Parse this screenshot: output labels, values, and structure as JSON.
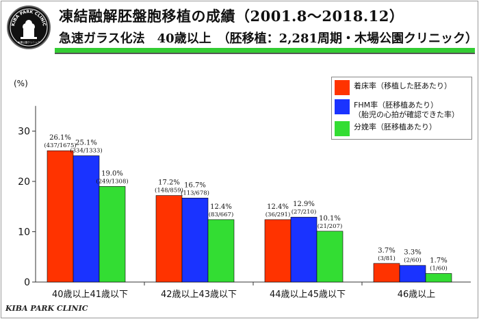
{
  "header": {
    "logo_text": "KIBA PARK CLINIC",
    "logo_subtext": "木場公園クリニック",
    "title_line1": "凍結融解胚盤胞移植の成績（2001.8〜2018.12）",
    "title_line2": "急速ガラス化法　40歳以上　（胚移植：2,281周期・木場公園クリニック）"
  },
  "footer": {
    "text": "KIBA PARK CLINIC"
  },
  "colors": {
    "implantation": "#ff3300",
    "fhm": "#1a33ff",
    "delivery": "#33dd33",
    "accent_green": "#33cc33"
  },
  "chart_data": {
    "type": "bar",
    "ylabel": "(%)",
    "ylim": [
      0,
      35
    ],
    "yticks": [
      0,
      10,
      20,
      30
    ],
    "categories": [
      "40歳以上41歳以下",
      "42歳以上43歳以下",
      "44歳以上45歳以下",
      "46歳以上"
    ],
    "series": [
      {
        "name": "着床率（移植した胚あたり）",
        "color": "#ff3300",
        "values": [
          26.1,
          17.2,
          12.4,
          3.7
        ],
        "value_labels": [
          "26.1%",
          "17.2%",
          "12.4%",
          "3.7%"
        ],
        "count_labels": [
          "(437/1675)",
          "(148/859)",
          "(36/291)",
          "(3/81)"
        ]
      },
      {
        "name": "FHM率（胚移植あたり）\n（胎児の心拍が確認できた率）",
        "color": "#1a33ff",
        "values": [
          25.1,
          16.7,
          12.9,
          3.3
        ],
        "value_labels": [
          "25.1%",
          "16.7%",
          "12.9%",
          "3.3%"
        ],
        "count_labels": [
          "(334/1333)",
          "(113/678)",
          "(27/210)",
          "(2/60)"
        ]
      },
      {
        "name": "分娩率（胚移植あたり）",
        "color": "#33dd33",
        "values": [
          19.0,
          12.4,
          10.1,
          1.7
        ],
        "value_labels": [
          "19.0%",
          "12.4%",
          "10.1%",
          "1.7%"
        ],
        "count_labels": [
          "(249/1308)",
          "(83/667)",
          "(21/207)",
          "(1/60)"
        ]
      }
    ],
    "legend": {
      "position": "top-right",
      "entries": [
        {
          "line1": "着床率（移植した胚あたり）",
          "line2": ""
        },
        {
          "line1": "FHM率（胚移植あたり）",
          "line2": "（胎児の心拍が確認できた率）"
        },
        {
          "line1": "分娩率（胚移植あたり）",
          "line2": ""
        }
      ]
    }
  }
}
